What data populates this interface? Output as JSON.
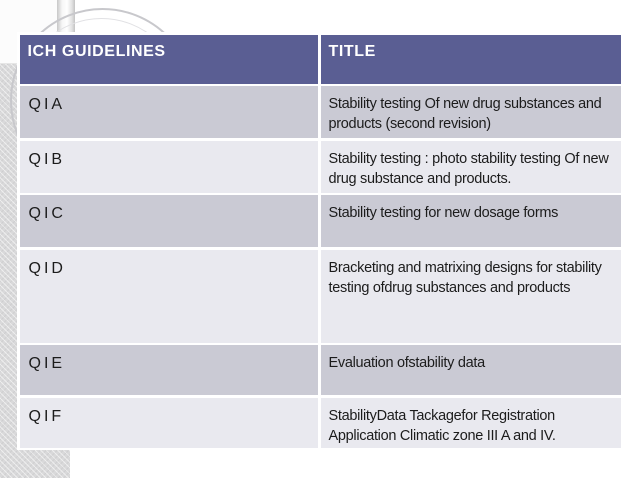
{
  "slide_type": "presentation-slide",
  "table": {
    "header": {
      "guidelines": "ICH GUIDELINES",
      "title": "TITLE"
    },
    "rows": [
      {
        "guideline": "QIA",
        "title": "Stability testing Of new drug substances and products (second revision)"
      },
      {
        "guideline": "QIB",
        "title": "Stability testing : photo stability testing Of new drug substance and products."
      },
      {
        "guideline": "QIC",
        "title": "Stability testing for new dosage forms"
      },
      {
        "guideline": "QID",
        "title": "Bracketing and matrixing designs for stability testing ofdrug substances and products"
      },
      {
        "guideline": "QIE",
        "title": "Evaluation ofstability data"
      },
      {
        "guideline": "QIF",
        "title": "StabilityData Tackagefor Registration Application Climatic zone III A and IV."
      }
    ]
  },
  "colors": {
    "header_bg": "#5a5e93",
    "row_dark": "#cacad4",
    "row_light": "#e9e9ef",
    "slide_margin_texture": "#d9d9da",
    "header_text": "#ffffff",
    "body_text": "#1c1c1c"
  }
}
